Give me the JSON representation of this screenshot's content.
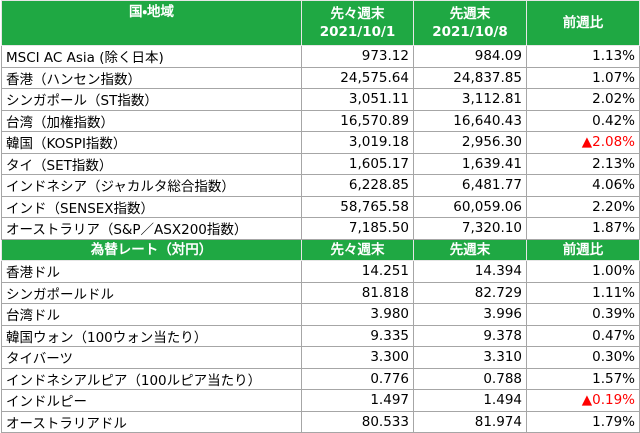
{
  "alert_color": "#ff0000",
  "sections": [
    {
      "header": [
        [
          "国・地域"
        ],
        [
          "先々週末",
          "2021/10/1"
        ],
        [
          "先週末",
          "2021/10/8"
        ],
        [
          "前週比"
        ]
      ],
      "rows": [
        {
          "cells": [
            "MSCI AC Asia (除く日本)",
            "973.12",
            "984.09",
            "1.13%"
          ]
        },
        {
          "cells": [
            "香港（ハンセン指数）",
            "24,575.64",
            "24,837.85",
            "1.07%"
          ]
        },
        {
          "cells": [
            "シンガポール（ST指数）",
            "3,051.11",
            "3,112.81",
            "2.02%"
          ]
        },
        {
          "cells": [
            "台湾（加権指数）",
            "16,570.89",
            "16,640.43",
            "0.42%"
          ]
        },
        {
          "cells": [
            "韓国（KOSPI指数）",
            "3,019.18",
            "2,956.30",
            "▲2.08%"
          ],
          "alert": true
        },
        {
          "cells": [
            "タイ（SET指数）",
            "1,605.17",
            "1,639.41",
            "2.13%"
          ]
        },
        {
          "cells": [
            "インドネシア（ジャカルタ総合指数）",
            "6,228.85",
            "6,481.77",
            "4.06%"
          ]
        },
        {
          "cells": [
            "インド（SENSEX指数）",
            "58,765.58",
            "60,059.06",
            "2.20%"
          ]
        },
        {
          "cells": [
            "オーストラリア（S&P／ASX200指数）",
            "7,185.50",
            "7,320.10",
            "1.87%"
          ]
        }
      ]
    },
    {
      "header": [
        [
          "為替レート（対円）"
        ],
        [
          "先々週末"
        ],
        [
          "先週末"
        ],
        [
          "前週比"
        ]
      ],
      "rows": [
        {
          "cells": [
            "香港ドル",
            "14.251",
            "14.394",
            "1.00%"
          ]
        },
        {
          "cells": [
            "シンガポールドル",
            "81.818",
            "82.729",
            "1.11%"
          ]
        },
        {
          "cells": [
            "台湾ドル",
            "3.980",
            "3.996",
            "0.39%"
          ]
        },
        {
          "cells": [
            "韓国ウォン（100ウォン当たり）",
            "9.335",
            "9.378",
            "0.47%"
          ]
        },
        {
          "cells": [
            "タイバーツ",
            "3.300",
            "3.310",
            "0.30%"
          ]
        },
        {
          "cells": [
            "インドネシアルピア（100ルピア当たり）",
            "0.776",
            "0.788",
            "1.57%"
          ]
        },
        {
          "cells": [
            "インドルピー",
            "1.497",
            "1.494",
            "▲0.19%"
          ],
          "alert": true
        },
        {
          "cells": [
            "オーストラリアドル",
            "80.533",
            "81.974",
            "1.79%"
          ]
        }
      ]
    }
  ]
}
